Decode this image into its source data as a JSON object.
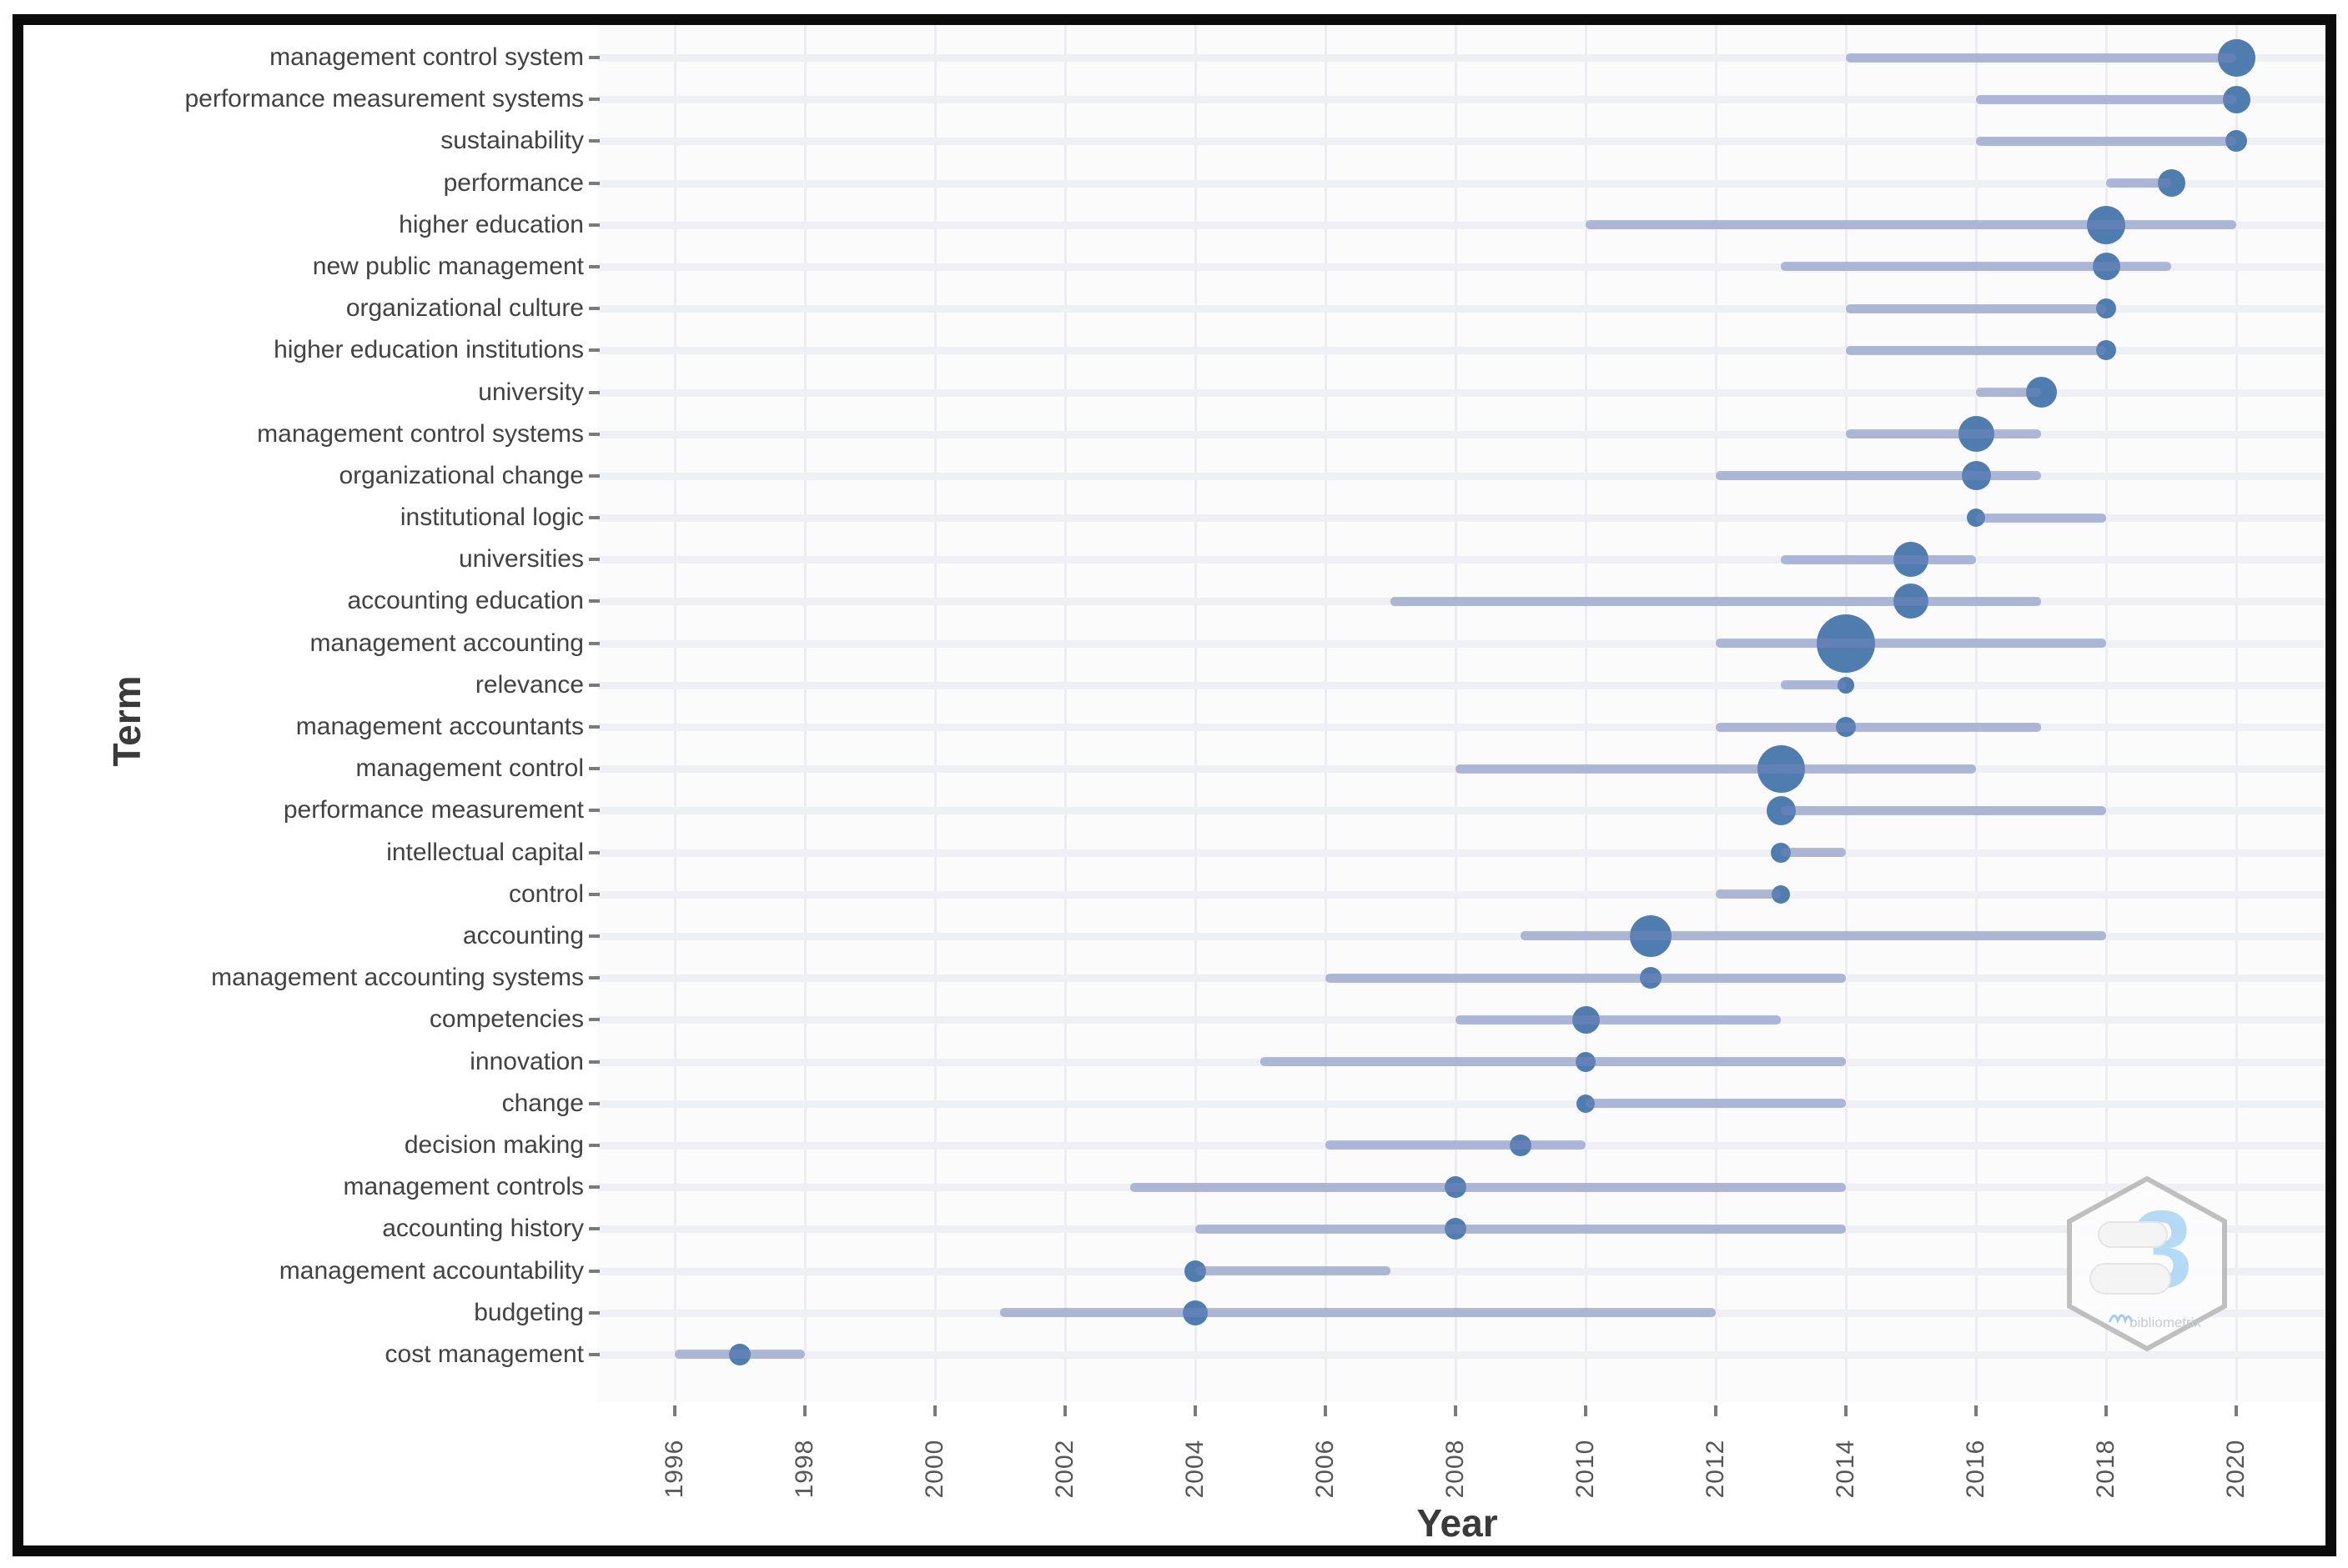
{
  "axis": {
    "x_title": "Year",
    "y_title": "Term"
  },
  "logo": {
    "big_glyph": "3",
    "caption": "bibliometrix"
  },
  "colors": {
    "bubble": "#4f7db0",
    "range_line": "#b2bddb",
    "grid": "#ededf2",
    "tick": "#7a7a7a",
    "term_label": "#424242",
    "axis_title": "#3a3a3a",
    "frame": "#0b0b0b",
    "logo_blue": "#aed7f5",
    "logo_gray": "#b9b9b9"
  },
  "chart_data": {
    "type": "scatter",
    "subtype": "trend-topics-bubble-timeline",
    "title": "",
    "xlabel": "Year",
    "ylabel": "Term",
    "grid": true,
    "legend": "none",
    "x_tick_years": [
      1996,
      1998,
      2000,
      2002,
      2004,
      2006,
      2008,
      2010,
      2012,
      2014,
      2016,
      2018,
      2020
    ],
    "x_range": [
      1994.8,
      2021.5
    ],
    "terms": [
      {
        "term": "management control system",
        "line_start_year": 2014,
        "line_end_year": 2020,
        "bubble_year": 2020,
        "bubble_size_px": 45
      },
      {
        "term": "performance measurement systems",
        "line_start_year": 2016,
        "line_end_year": 2020,
        "bubble_year": 2020,
        "bubble_size_px": 33
      },
      {
        "term": "sustainability",
        "line_start_year": 2016,
        "line_end_year": 2020,
        "bubble_year": 2020,
        "bubble_size_px": 26
      },
      {
        "term": "performance",
        "line_start_year": 2018,
        "line_end_year": 2019,
        "bubble_year": 2019,
        "bubble_size_px": 33
      },
      {
        "term": "higher education",
        "line_start_year": 2010,
        "line_end_year": 2020,
        "bubble_year": 2018,
        "bubble_size_px": 46
      },
      {
        "term": "new public management",
        "line_start_year": 2013,
        "line_end_year": 2019,
        "bubble_year": 2018,
        "bubble_size_px": 33
      },
      {
        "term": "organizational culture",
        "line_start_year": 2014,
        "line_end_year": 2018,
        "bubble_year": 2018,
        "bubble_size_px": 24
      },
      {
        "term": "higher education institutions",
        "line_start_year": 2014,
        "line_end_year": 2018,
        "bubble_year": 2018,
        "bubble_size_px": 24
      },
      {
        "term": "university",
        "line_start_year": 2016,
        "line_end_year": 2017,
        "bubble_year": 2017,
        "bubble_size_px": 37
      },
      {
        "term": "management control systems",
        "line_start_year": 2014,
        "line_end_year": 2017,
        "bubble_year": 2016,
        "bubble_size_px": 43
      },
      {
        "term": "organizational change",
        "line_start_year": 2012,
        "line_end_year": 2017,
        "bubble_year": 2016,
        "bubble_size_px": 35
      },
      {
        "term": "institutional logic",
        "line_start_year": 2016,
        "line_end_year": 2018,
        "bubble_year": 2016,
        "bubble_size_px": 22
      },
      {
        "term": "universities",
        "line_start_year": 2013,
        "line_end_year": 2016,
        "bubble_year": 2015,
        "bubble_size_px": 42
      },
      {
        "term": "accounting education",
        "line_start_year": 2007,
        "line_end_year": 2017,
        "bubble_year": 2015,
        "bubble_size_px": 42
      },
      {
        "term": "management accounting",
        "line_start_year": 2012,
        "line_end_year": 2018,
        "bubble_year": 2014,
        "bubble_size_px": 70
      },
      {
        "term": "relevance",
        "line_start_year": 2013,
        "line_end_year": 2014,
        "bubble_year": 2014,
        "bubble_size_px": 20
      },
      {
        "term": "management accountants",
        "line_start_year": 2012,
        "line_end_year": 2017,
        "bubble_year": 2014,
        "bubble_size_px": 24
      },
      {
        "term": "management control",
        "line_start_year": 2008,
        "line_end_year": 2016,
        "bubble_year": 2013,
        "bubble_size_px": 57
      },
      {
        "term": "performance measurement",
        "line_start_year": 2013,
        "line_end_year": 2018,
        "bubble_year": 2013,
        "bubble_size_px": 35
      },
      {
        "term": "intellectual capital",
        "line_start_year": 2013,
        "line_end_year": 2014,
        "bubble_year": 2013,
        "bubble_size_px": 24
      },
      {
        "term": "control",
        "line_start_year": 2012,
        "line_end_year": 2013,
        "bubble_year": 2013,
        "bubble_size_px": 22
      },
      {
        "term": "accounting",
        "line_start_year": 2009,
        "line_end_year": 2018,
        "bubble_year": 2011,
        "bubble_size_px": 50
      },
      {
        "term": "management accounting systems",
        "line_start_year": 2006,
        "line_end_year": 2014,
        "bubble_year": 2011,
        "bubble_size_px": 26
      },
      {
        "term": "competencies",
        "line_start_year": 2008,
        "line_end_year": 2013,
        "bubble_year": 2010,
        "bubble_size_px": 33
      },
      {
        "term": "innovation",
        "line_start_year": 2005,
        "line_end_year": 2014,
        "bubble_year": 2010,
        "bubble_size_px": 24
      },
      {
        "term": "change",
        "line_start_year": 2010,
        "line_end_year": 2014,
        "bubble_year": 2010,
        "bubble_size_px": 22
      },
      {
        "term": "decision making",
        "line_start_year": 2006,
        "line_end_year": 2010,
        "bubble_year": 2009,
        "bubble_size_px": 26
      },
      {
        "term": "management controls",
        "line_start_year": 2003,
        "line_end_year": 2014,
        "bubble_year": 2008,
        "bubble_size_px": 26
      },
      {
        "term": "accounting history",
        "line_start_year": 2004,
        "line_end_year": 2014,
        "bubble_year": 2008,
        "bubble_size_px": 26
      },
      {
        "term": "management accountability",
        "line_start_year": 2004,
        "line_end_year": 2007,
        "bubble_year": 2004,
        "bubble_size_px": 26
      },
      {
        "term": "budgeting",
        "line_start_year": 2001,
        "line_end_year": 2012,
        "bubble_year": 2004,
        "bubble_size_px": 30
      },
      {
        "term": "cost management",
        "line_start_year": 1996,
        "line_end_year": 1998,
        "bubble_year": 1997,
        "bubble_size_px": 26
      }
    ]
  }
}
